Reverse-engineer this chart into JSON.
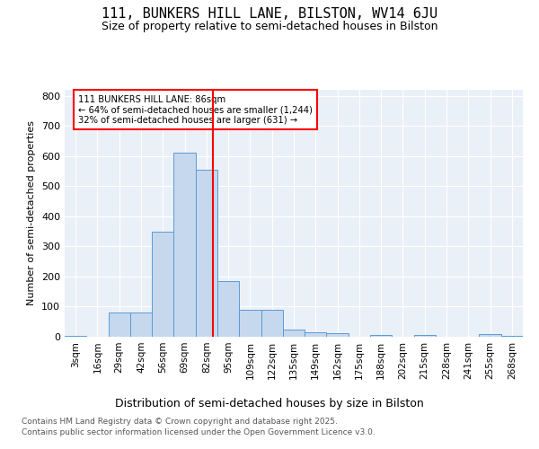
{
  "title": "111, BUNKERS HILL LANE, BILSTON, WV14 6JU",
  "subtitle": "Size of property relative to semi-detached houses in Bilston",
  "xlabel": "Distribution of semi-detached houses by size in Bilston",
  "ylabel": "Number of semi-detached properties",
  "bin_labels": [
    "3sqm",
    "16sqm",
    "29sqm",
    "42sqm",
    "56sqm",
    "69sqm",
    "82sqm",
    "95sqm",
    "109sqm",
    "122sqm",
    "135sqm",
    "149sqm",
    "162sqm",
    "175sqm",
    "188sqm",
    "202sqm",
    "215sqm",
    "228sqm",
    "241sqm",
    "255sqm",
    "268sqm"
  ],
  "bin_edges": [
    3,
    16,
    29,
    42,
    56,
    69,
    82,
    95,
    109,
    122,
    135,
    149,
    162,
    175,
    188,
    202,
    215,
    228,
    241,
    255,
    268
  ],
  "bar_heights": [
    2,
    0,
    82,
    82,
    350,
    610,
    555,
    185,
    88,
    88,
    25,
    15,
    12,
    0,
    5,
    0,
    5,
    0,
    0,
    8,
    2
  ],
  "bar_color": "#c5d8ed",
  "bar_edge_color": "#5b9bd5",
  "annotation_text_line1": "111 BUNKERS HILL LANE: 86sqm",
  "annotation_text_line2": "← 64% of semi-detached houses are smaller (1,244)",
  "annotation_text_line3": "32% of semi-detached houses are larger (631) →",
  "ylim": [
    0,
    820
  ],
  "yticks": [
    0,
    100,
    200,
    300,
    400,
    500,
    600,
    700,
    800
  ],
  "background_color": "#eaf0f8",
  "grid_color": "#ffffff",
  "footer_line1": "Contains HM Land Registry data © Crown copyright and database right 2025.",
  "footer_line2": "Contains public sector information licensed under the Open Government Licence v3.0."
}
